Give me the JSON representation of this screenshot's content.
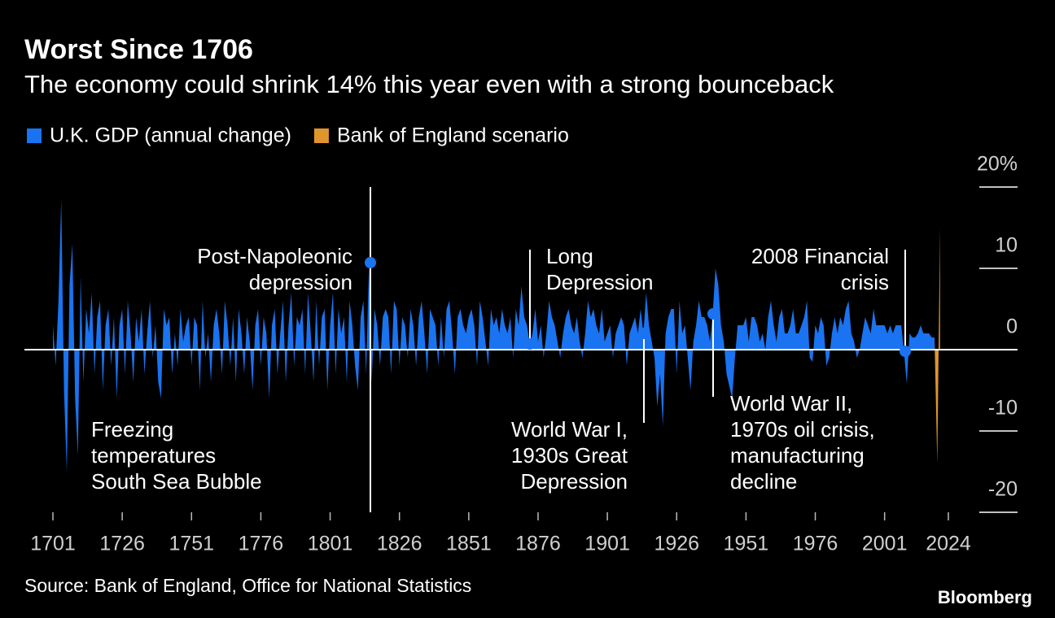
{
  "chart_data": {
    "type": "area",
    "title": "Worst Since 1706",
    "subtitle": "The economy could shrink 14% this year even with a strong bounceback",
    "source": "Source: Bank of England, Office for National Statistics",
    "brand": "Bloomberg",
    "xlim": [
      1701,
      2024
    ],
    "xticks": [
      1701,
      1726,
      1751,
      1776,
      1801,
      1826,
      1851,
      1876,
      1901,
      1926,
      1951,
      1976,
      2001,
      2024
    ],
    "ylim": [
      -20,
      20
    ],
    "yticks": [
      {
        "value": 20,
        "label": "20%"
      },
      10,
      0,
      -10,
      -20
    ],
    "series": [
      {
        "name": "U.K. GDP (annual change)",
        "color": "#1a73f0",
        "x": [
          1701,
          1702,
          1703,
          1704,
          1705,
          1706,
          1707,
          1708,
          1709,
          1710,
          1711,
          1712,
          1713,
          1714,
          1715,
          1716,
          1717,
          1718,
          1719,
          1720,
          1721,
          1722,
          1723,
          1724,
          1725,
          1726,
          1727,
          1728,
          1729,
          1730,
          1731,
          1732,
          1733,
          1734,
          1735,
          1736,
          1737,
          1738,
          1739,
          1740,
          1741,
          1742,
          1743,
          1744,
          1745,
          1746,
          1747,
          1748,
          1749,
          1750,
          1751,
          1752,
          1753,
          1754,
          1755,
          1756,
          1757,
          1758,
          1759,
          1760,
          1761,
          1762,
          1763,
          1764,
          1765,
          1766,
          1767,
          1768,
          1769,
          1770,
          1771,
          1772,
          1773,
          1774,
          1775,
          1776,
          1777,
          1778,
          1779,
          1780,
          1781,
          1782,
          1783,
          1784,
          1785,
          1786,
          1787,
          1788,
          1789,
          1790,
          1791,
          1792,
          1793,
          1794,
          1795,
          1796,
          1797,
          1798,
          1799,
          1800,
          1801,
          1802,
          1803,
          1804,
          1805,
          1806,
          1807,
          1808,
          1809,
          1810,
          1811,
          1812,
          1813,
          1814,
          1815,
          1816,
          1817,
          1818,
          1819,
          1820,
          1821,
          1822,
          1823,
          1824,
          1825,
          1826,
          1827,
          1828,
          1829,
          1830,
          1831,
          1832,
          1833,
          1834,
          1835,
          1836,
          1837,
          1838,
          1839,
          1840,
          1841,
          1842,
          1843,
          1844,
          1845,
          1846,
          1847,
          1848,
          1849,
          1850,
          1851,
          1852,
          1853,
          1854,
          1855,
          1856,
          1857,
          1858,
          1859,
          1860,
          1861,
          1862,
          1863,
          1864,
          1865,
          1866,
          1867,
          1868,
          1869,
          1870,
          1871,
          1872,
          1873,
          1874,
          1875,
          1876,
          1877,
          1878,
          1879,
          1880,
          1881,
          1882,
          1883,
          1884,
          1885,
          1886,
          1887,
          1888,
          1889,
          1890,
          1891,
          1892,
          1893,
          1894,
          1895,
          1896,
          1897,
          1898,
          1899,
          1900,
          1901,
          1902,
          1903,
          1904,
          1905,
          1906,
          1907,
          1908,
          1909,
          1910,
          1911,
          1912,
          1913,
          1914,
          1915,
          1916,
          1917,
          1918,
          1919,
          1920,
          1921,
          1922,
          1923,
          1924,
          1925,
          1926,
          1927,
          1928,
          1929,
          1930,
          1931,
          1932,
          1933,
          1934,
          1935,
          1936,
          1937,
          1938,
          1939,
          1940,
          1941,
          1942,
          1943,
          1944,
          1945,
          1946,
          1947,
          1948,
          1949,
          1950,
          1951,
          1952,
          1953,
          1954,
          1955,
          1956,
          1957,
          1958,
          1959,
          1960,
          1961,
          1962,
          1963,
          1964,
          1965,
          1966,
          1967,
          1968,
          1969,
          1970,
          1971,
          1972,
          1973,
          1974,
          1975,
          1976,
          1977,
          1978,
          1979,
          1980,
          1981,
          1982,
          1983,
          1984,
          1985,
          1986,
          1987,
          1988,
          1989,
          1990,
          1991,
          1992,
          1993,
          1994,
          1995,
          1996,
          1997,
          1998,
          1999,
          2000,
          2001,
          2002,
          2003,
          2004,
          2005,
          2006,
          2007,
          2008,
          2009,
          2010,
          2011,
          2012,
          2013,
          2014,
          2015,
          2016,
          2017,
          2018,
          2019
        ],
        "values": [
          3,
          -2,
          6,
          18.5,
          -5,
          -15,
          8,
          13,
          -6,
          -13,
          9,
          -4,
          5,
          2,
          7,
          -3,
          4,
          6,
          -5,
          3,
          5,
          -2,
          4,
          -6,
          3,
          5,
          -3,
          6,
          2,
          -4,
          4,
          1,
          5,
          -3,
          2,
          6,
          -1,
          3,
          -4,
          -6,
          5,
          3,
          4,
          -3,
          2,
          -2,
          5,
          1,
          3,
          4,
          -2,
          4,
          3,
          -5,
          6,
          -1,
          2,
          -4,
          3,
          5,
          2,
          -3,
          6,
          3,
          -2,
          4,
          -4,
          5,
          2,
          -3,
          4,
          1,
          -5,
          3,
          5,
          -2,
          4,
          2,
          -6,
          3,
          5,
          -3,
          2,
          6,
          -4,
          3,
          7,
          -2,
          4,
          3,
          5,
          -3,
          7,
          2,
          -4,
          6,
          -2,
          4,
          5,
          -5,
          3,
          7,
          -3,
          5,
          2,
          4,
          -4,
          6,
          3,
          -2,
          -5,
          4,
          6,
          -3,
          10.7,
          -4,
          5,
          3,
          -2,
          4,
          5,
          4,
          -3,
          6,
          5,
          -2,
          4,
          3,
          -1,
          5,
          3,
          -2,
          4,
          6,
          2,
          -3,
          5,
          4,
          3,
          -2,
          4,
          -1,
          5,
          6,
          2,
          -3,
          4,
          5,
          3,
          2,
          4,
          5,
          3,
          -2,
          6,
          4,
          1,
          -2,
          5,
          3,
          4,
          2,
          5,
          3,
          2,
          4,
          -1,
          5,
          3,
          7.8,
          4,
          3,
          0.7,
          2,
          5,
          1,
          3,
          -1,
          2,
          6,
          4,
          3,
          1,
          -1,
          2,
          4,
          5,
          3,
          2,
          4,
          1,
          -1,
          2,
          6,
          4,
          5,
          3,
          2,
          5,
          1,
          2,
          3,
          -1,
          2,
          3,
          4,
          3,
          -2,
          2,
          3,
          4,
          2,
          5,
          2,
          7,
          3,
          1,
          -1,
          -7,
          -3,
          -9.4,
          2,
          4,
          5,
          5,
          -3,
          6,
          2,
          3,
          -1,
          -5,
          1,
          3,
          6,
          4,
          4,
          3,
          1,
          4.4,
          10,
          8,
          3,
          1,
          -3,
          -4.5,
          -6,
          -1,
          3,
          3,
          3,
          4,
          1,
          4,
          4,
          3,
          1,
          2,
          0,
          4,
          6,
          3,
          1,
          4,
          5,
          2,
          2,
          3,
          5,
          2,
          2,
          3,
          4,
          6,
          -1,
          -1.5,
          3,
          2,
          4,
          3,
          -2,
          -1,
          2,
          4,
          2,
          4,
          3,
          5,
          6,
          2,
          1,
          -1,
          0,
          2,
          4,
          3,
          2,
          5,
          3,
          3,
          3,
          3,
          2,
          3,
          2,
          3,
          3,
          3,
          -0.3,
          -4.2,
          2,
          1.5,
          1.5,
          2,
          3,
          2,
          2,
          2,
          1.5,
          1.5
        ]
      },
      {
        "name": "Bank of England scenario",
        "color": "#e0952c",
        "x": [
          2019,
          2020,
          2021
        ],
        "values": [
          1.5,
          -14,
          15
        ]
      }
    ],
    "annotations": [
      {
        "text": [
          "Post-Napoleonic",
          "depression"
        ]
      },
      {
        "text": [
          "Long",
          "Depression"
        ]
      },
      {
        "text": [
          "World War I,",
          "1930s Great",
          "Depression"
        ]
      },
      {
        "text": [
          "World War II,",
          "1970s oil crisis,",
          "manufacturing",
          "decline"
        ]
      },
      {
        "text": [
          "2008 Financial",
          "crisis"
        ]
      },
      {
        "text": [
          "Freezing",
          "temperatures",
          "South Sea Bubble"
        ]
      }
    ]
  }
}
